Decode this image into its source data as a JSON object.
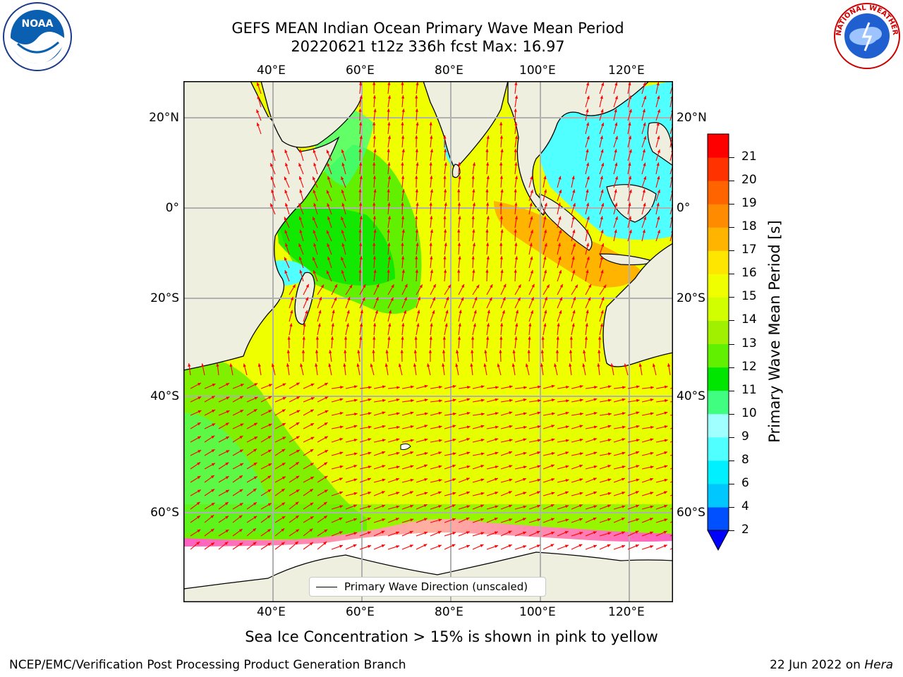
{
  "title": {
    "line1": "GEFS MEAN Indian Ocean Primary Wave Mean Period",
    "line2": "20220621 t12z 336h fcst   Max: 16.97"
  },
  "map": {
    "lon_labels_top": [
      "40°E",
      "60°E",
      "80°E",
      "100°E",
      "120°E"
    ],
    "lon_labels_bottom": [
      "40°E",
      "60°E",
      "80°E",
      "100°E",
      "120°E"
    ],
    "lat_labels_left": [
      "20°N",
      "0°",
      "20°S",
      "40°S",
      "60°S"
    ],
    "lat_labels_right": [
      "20°N",
      "0°",
      "20°S",
      "40°S",
      "60°S"
    ],
    "legend_label": "Primary Wave Direction (unscaled)",
    "arrow_color": "#ff0000",
    "land_color": "#efefdf"
  },
  "colorbar": {
    "label": "Primary Wave Mean Period [s]",
    "ticks": [
      "2",
      "4",
      "6",
      "8",
      "9",
      "10",
      "11",
      "12",
      "13",
      "14",
      "15",
      "16",
      "17",
      "18",
      "19",
      "20",
      "21"
    ],
    "colors": [
      "#0050ff",
      "#00c8ff",
      "#00f0ff",
      "#50ffff",
      "#a0ffff",
      "#40ff80",
      "#00e600",
      "#60f000",
      "#a0f000",
      "#d2ff00",
      "#f0ff00",
      "#ffe600",
      "#ffb400",
      "#ff8c00",
      "#ff6400",
      "#ff3200",
      "#ff0000"
    ],
    "extend_color": "#0000ff"
  },
  "caption": "Sea Ice Concentration > 15% is shown in pink to yellow",
  "footer": {
    "left": "NCEP/EMC/Verification Post Processing Product Generation Branch",
    "right_date": "22 Jun 2022 on ",
    "right_host": "Hera"
  },
  "logos": {
    "noaa_text": "NOAA",
    "nws_text": "NATIONAL WEATHER SERVICE"
  }
}
